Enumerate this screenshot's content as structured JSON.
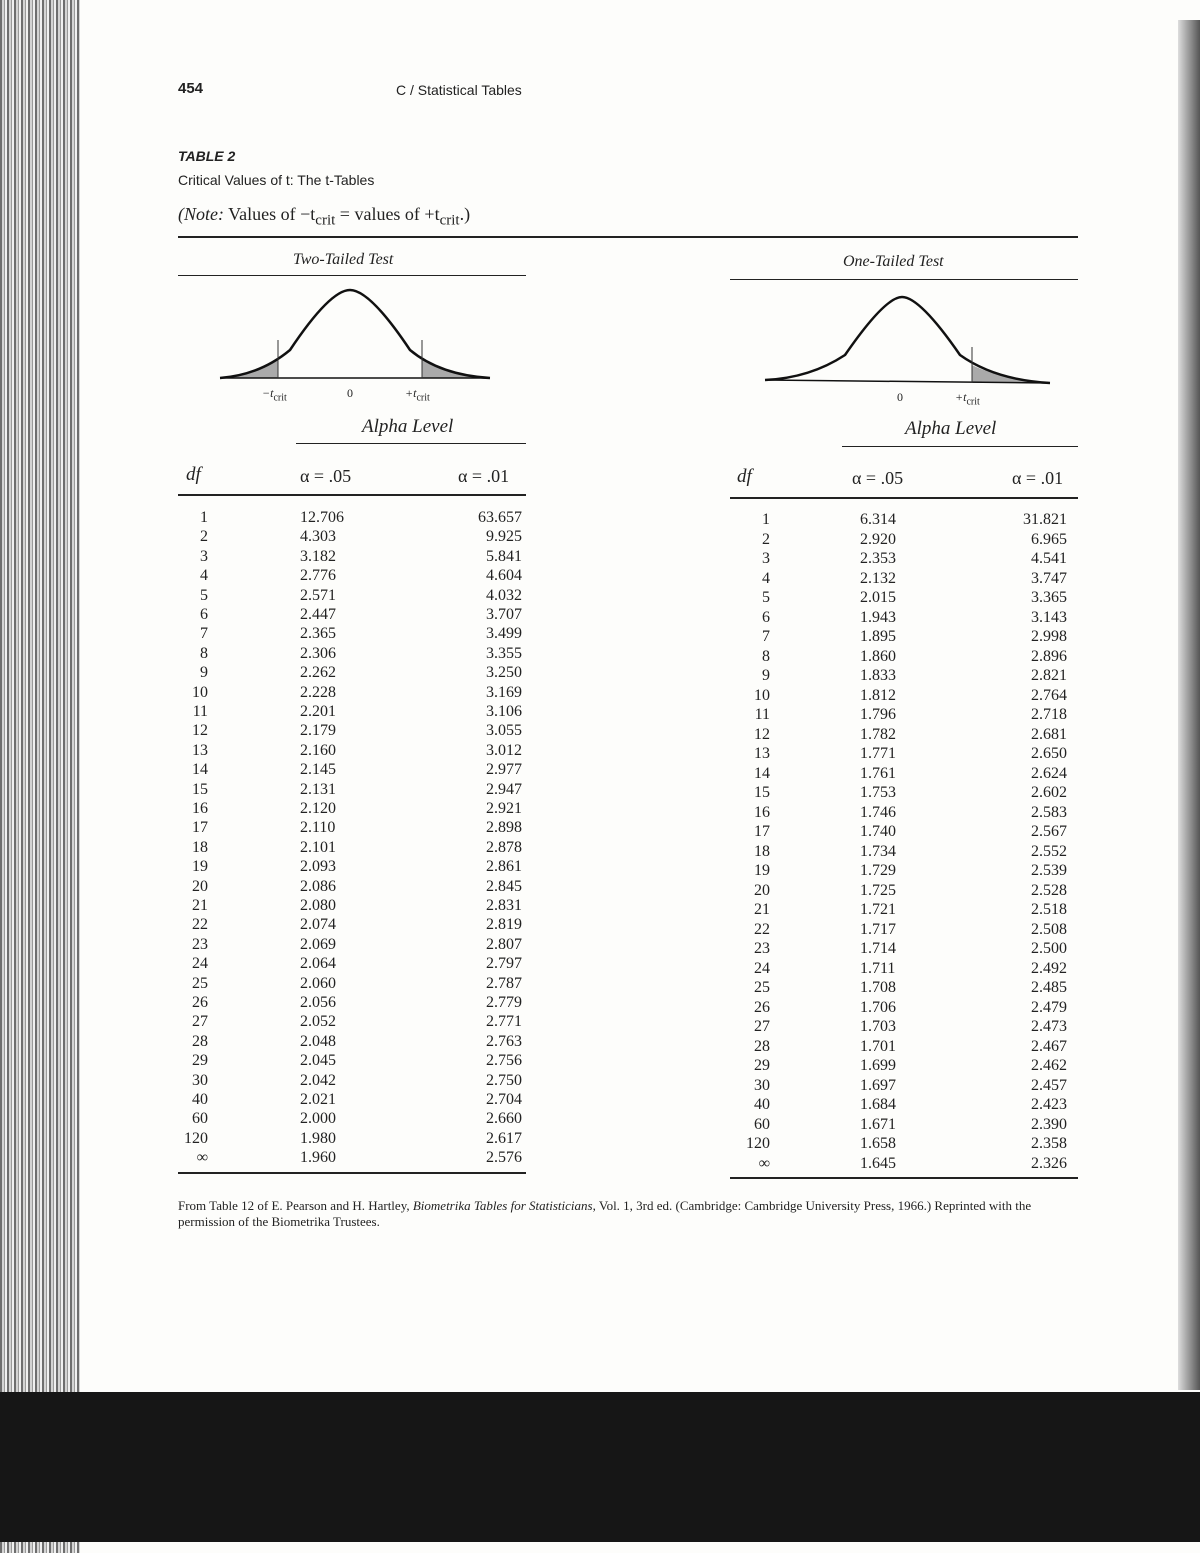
{
  "header": {
    "page_number": "454",
    "running_title": "C / Statistical Tables"
  },
  "table": {
    "label": "TABLE 2",
    "title": "Critical Values of t: The t-Tables",
    "note_prefix": "(Note:",
    "note_body": " Values of −t",
    "note_sub1": "crit",
    "note_mid": " = values of +t",
    "note_sub2": "crit",
    "note_end": ".)"
  },
  "two_tailed": {
    "heading": "Two-Tailed Test",
    "labels": {
      "neg": "−t",
      "neg_sub": "crit",
      "zero": "0",
      "pos": "+t",
      "pos_sub": "crit"
    },
    "alpha_level": "Alpha Level",
    "col_df": "df",
    "col_a05": "α = .05",
    "col_a01": "α = .01",
    "rows": [
      [
        "1",
        "12.706",
        "63.657"
      ],
      [
        "2",
        "4.303",
        "9.925"
      ],
      [
        "3",
        "3.182",
        "5.841"
      ],
      [
        "4",
        "2.776",
        "4.604"
      ],
      [
        "5",
        "2.571",
        "4.032"
      ],
      [
        "6",
        "2.447",
        "3.707"
      ],
      [
        "7",
        "2.365",
        "3.499"
      ],
      [
        "8",
        "2.306",
        "3.355"
      ],
      [
        "9",
        "2.262",
        "3.250"
      ],
      [
        "10",
        "2.228",
        "3.169"
      ],
      [
        "11",
        "2.201",
        "3.106"
      ],
      [
        "12",
        "2.179",
        "3.055"
      ],
      [
        "13",
        "2.160",
        "3.012"
      ],
      [
        "14",
        "2.145",
        "2.977"
      ],
      [
        "15",
        "2.131",
        "2.947"
      ],
      [
        "16",
        "2.120",
        "2.921"
      ],
      [
        "17",
        "2.110",
        "2.898"
      ],
      [
        "18",
        "2.101",
        "2.878"
      ],
      [
        "19",
        "2.093",
        "2.861"
      ],
      [
        "20",
        "2.086",
        "2.845"
      ],
      [
        "21",
        "2.080",
        "2.831"
      ],
      [
        "22",
        "2.074",
        "2.819"
      ],
      [
        "23",
        "2.069",
        "2.807"
      ],
      [
        "24",
        "2.064",
        "2.797"
      ],
      [
        "25",
        "2.060",
        "2.787"
      ],
      [
        "26",
        "2.056",
        "2.779"
      ],
      [
        "27",
        "2.052",
        "2.771"
      ],
      [
        "28",
        "2.048",
        "2.763"
      ],
      [
        "29",
        "2.045",
        "2.756"
      ],
      [
        "30",
        "2.042",
        "2.750"
      ],
      [
        "40",
        "2.021",
        "2.704"
      ],
      [
        "60",
        "2.000",
        "2.660"
      ],
      [
        "120",
        "1.980",
        "2.617"
      ],
      [
        "∞",
        "1.960",
        "2.576"
      ]
    ]
  },
  "one_tailed": {
    "heading": "One-Tailed Test",
    "labels": {
      "zero": "0",
      "pos": "+t",
      "pos_sub": "crit"
    },
    "alpha_level": "Alpha Level",
    "col_df": "df",
    "col_a05": "α = .05",
    "col_a01": "α = .01",
    "rows": [
      [
        "1",
        "6.314",
        "31.821"
      ],
      [
        "2",
        "2.920",
        "6.965"
      ],
      [
        "3",
        "2.353",
        "4.541"
      ],
      [
        "4",
        "2.132",
        "3.747"
      ],
      [
        "5",
        "2.015",
        "3.365"
      ],
      [
        "6",
        "1.943",
        "3.143"
      ],
      [
        "7",
        "1.895",
        "2.998"
      ],
      [
        "8",
        "1.860",
        "2.896"
      ],
      [
        "9",
        "1.833",
        "2.821"
      ],
      [
        "10",
        "1.812",
        "2.764"
      ],
      [
        "11",
        "1.796",
        "2.718"
      ],
      [
        "12",
        "1.782",
        "2.681"
      ],
      [
        "13",
        "1.771",
        "2.650"
      ],
      [
        "14",
        "1.761",
        "2.624"
      ],
      [
        "15",
        "1.753",
        "2.602"
      ],
      [
        "16",
        "1.746",
        "2.583"
      ],
      [
        "17",
        "1.740",
        "2.567"
      ],
      [
        "18",
        "1.734",
        "2.552"
      ],
      [
        "19",
        "1.729",
        "2.539"
      ],
      [
        "20",
        "1.725",
        "2.528"
      ],
      [
        "21",
        "1.721",
        "2.518"
      ],
      [
        "22",
        "1.717",
        "2.508"
      ],
      [
        "23",
        "1.714",
        "2.500"
      ],
      [
        "24",
        "1.711",
        "2.492"
      ],
      [
        "25",
        "1.708",
        "2.485"
      ],
      [
        "26",
        "1.706",
        "2.479"
      ],
      [
        "27",
        "1.703",
        "2.473"
      ],
      [
        "28",
        "1.701",
        "2.467"
      ],
      [
        "29",
        "1.699",
        "2.462"
      ],
      [
        "30",
        "1.697",
        "2.457"
      ],
      [
        "40",
        "1.684",
        "2.423"
      ],
      [
        "60",
        "1.671",
        "2.390"
      ],
      [
        "120",
        "1.658",
        "2.358"
      ],
      [
        "∞",
        "1.645",
        "2.326"
      ]
    ]
  },
  "footnote": {
    "part1": "From Table 12 of E. Pearson and H. Hartley, ",
    "book": "Biometrika Tables for Statisticians",
    "part2": ", Vol. 1, 3rd ed. (Cambridge: Cambridge University Press, 1966.) Reprinted with the permission of the Biometrika Trustees."
  }
}
